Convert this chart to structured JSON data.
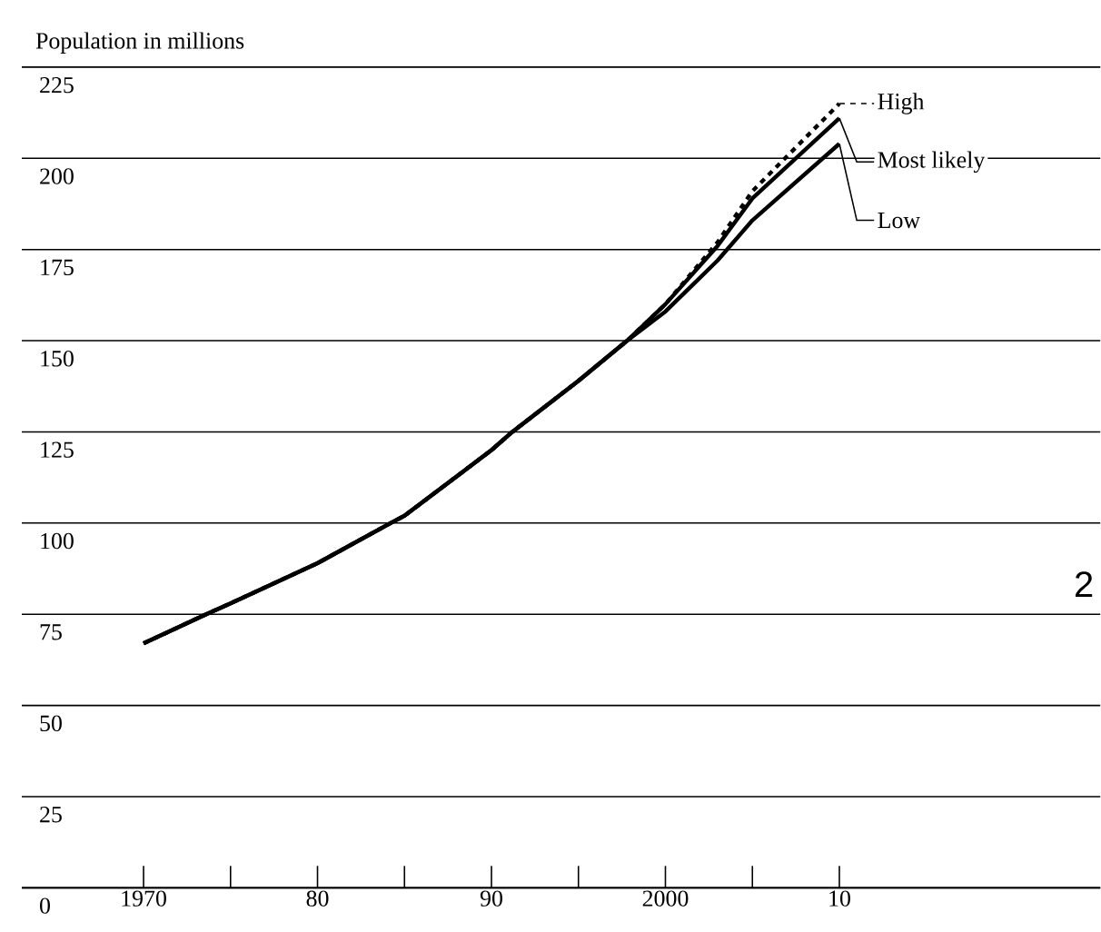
{
  "chart_data": {
    "type": "line",
    "ylabel": "Population in millions",
    "xlim": [
      1963,
      2025
    ],
    "xticks": [
      {
        "value": 1970,
        "label": "1970"
      },
      {
        "value": 1975,
        "label": null
      },
      {
        "value": 1980,
        "label": "80"
      },
      {
        "value": 1985,
        "label": null
      },
      {
        "value": 1990,
        "label": "90"
      },
      {
        "value": 1995,
        "label": null
      },
      {
        "value": 2000,
        "label": "2000"
      },
      {
        "value": 2005,
        "label": null
      },
      {
        "value": 2010,
        "label": "10"
      }
    ],
    "ylim": [
      0,
      225
    ],
    "yticks": [
      0,
      25,
      50,
      75,
      100,
      125,
      150,
      175,
      200,
      225
    ],
    "grid": "y",
    "legend": "right",
    "marker": "none",
    "x": [
      1970,
      1973.6,
      1975,
      1980,
      1984.2,
      1985,
      1990,
      1991.2,
      1995,
      1997.8,
      2000,
      2003,
      2005,
      2010
    ],
    "series": [
      {
        "name": "High",
        "color": "#000000",
        "line_style": "dashed",
        "values": [
          67,
          75,
          78,
          89,
          100,
          102,
          120,
          125,
          139,
          150,
          160,
          177,
          191,
          215
        ]
      },
      {
        "name": "Most likely",
        "color": "#000000",
        "line_style": "solid",
        "values": [
          67,
          75,
          78,
          89,
          100,
          102,
          120,
          125,
          139,
          150,
          160,
          176,
          189,
          211
        ]
      },
      {
        "name": "Low",
        "color": "#000000",
        "line_style": "solid",
        "values": [
          67,
          75,
          78,
          89,
          100,
          102,
          120,
          125,
          139,
          150,
          158,
          172,
          183,
          204
        ]
      }
    ],
    "annotations": [
      "2"
    ]
  }
}
